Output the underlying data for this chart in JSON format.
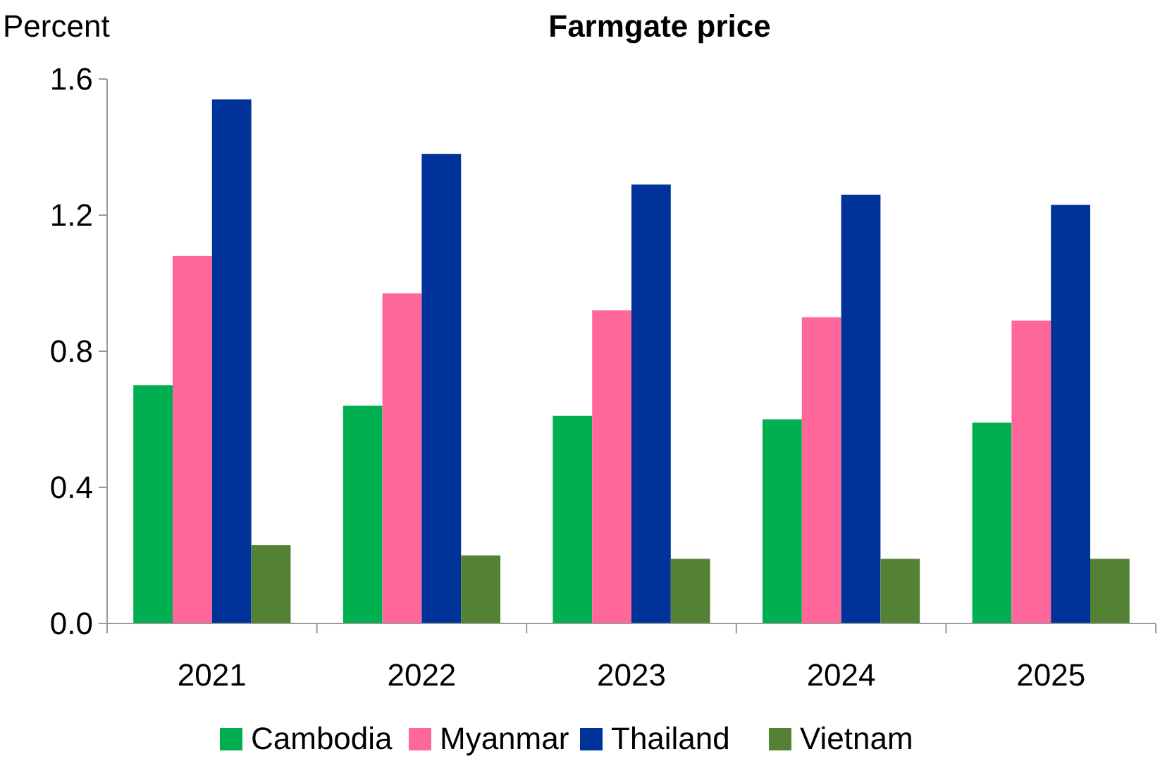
{
  "chart_data": {
    "type": "bar",
    "title": "Farmgate price",
    "ylabel": "Percent",
    "categories": [
      "2021",
      "2022",
      "2023",
      "2024",
      "2025"
    ],
    "series": [
      {
        "name": "Cambodia",
        "color": "#00b050",
        "values": [
          0.7,
          0.64,
          0.61,
          0.6,
          0.59
        ]
      },
      {
        "name": "Myanmar",
        "color": "#ff6699",
        "values": [
          1.08,
          0.97,
          0.92,
          0.9,
          0.89
        ]
      },
      {
        "name": "Thailand",
        "color": "#003399",
        "values": [
          1.54,
          1.38,
          1.29,
          1.26,
          1.23
        ]
      },
      {
        "name": "Vietnam",
        "color": "#548235",
        "values": [
          0.23,
          0.2,
          0.19,
          0.19,
          0.19
        ]
      }
    ],
    "ylim": [
      0,
      1.6
    ],
    "yticks": [
      {
        "value": 0,
        "label": "0.0"
      },
      {
        "value": 0.4,
        "label": "0.4"
      },
      {
        "value": 0.8,
        "label": "0.8"
      },
      {
        "value": 1.2,
        "label": "1.2"
      },
      {
        "value": 1.6,
        "label": "1.6"
      }
    ],
    "grid": false,
    "legend": "bottom"
  }
}
